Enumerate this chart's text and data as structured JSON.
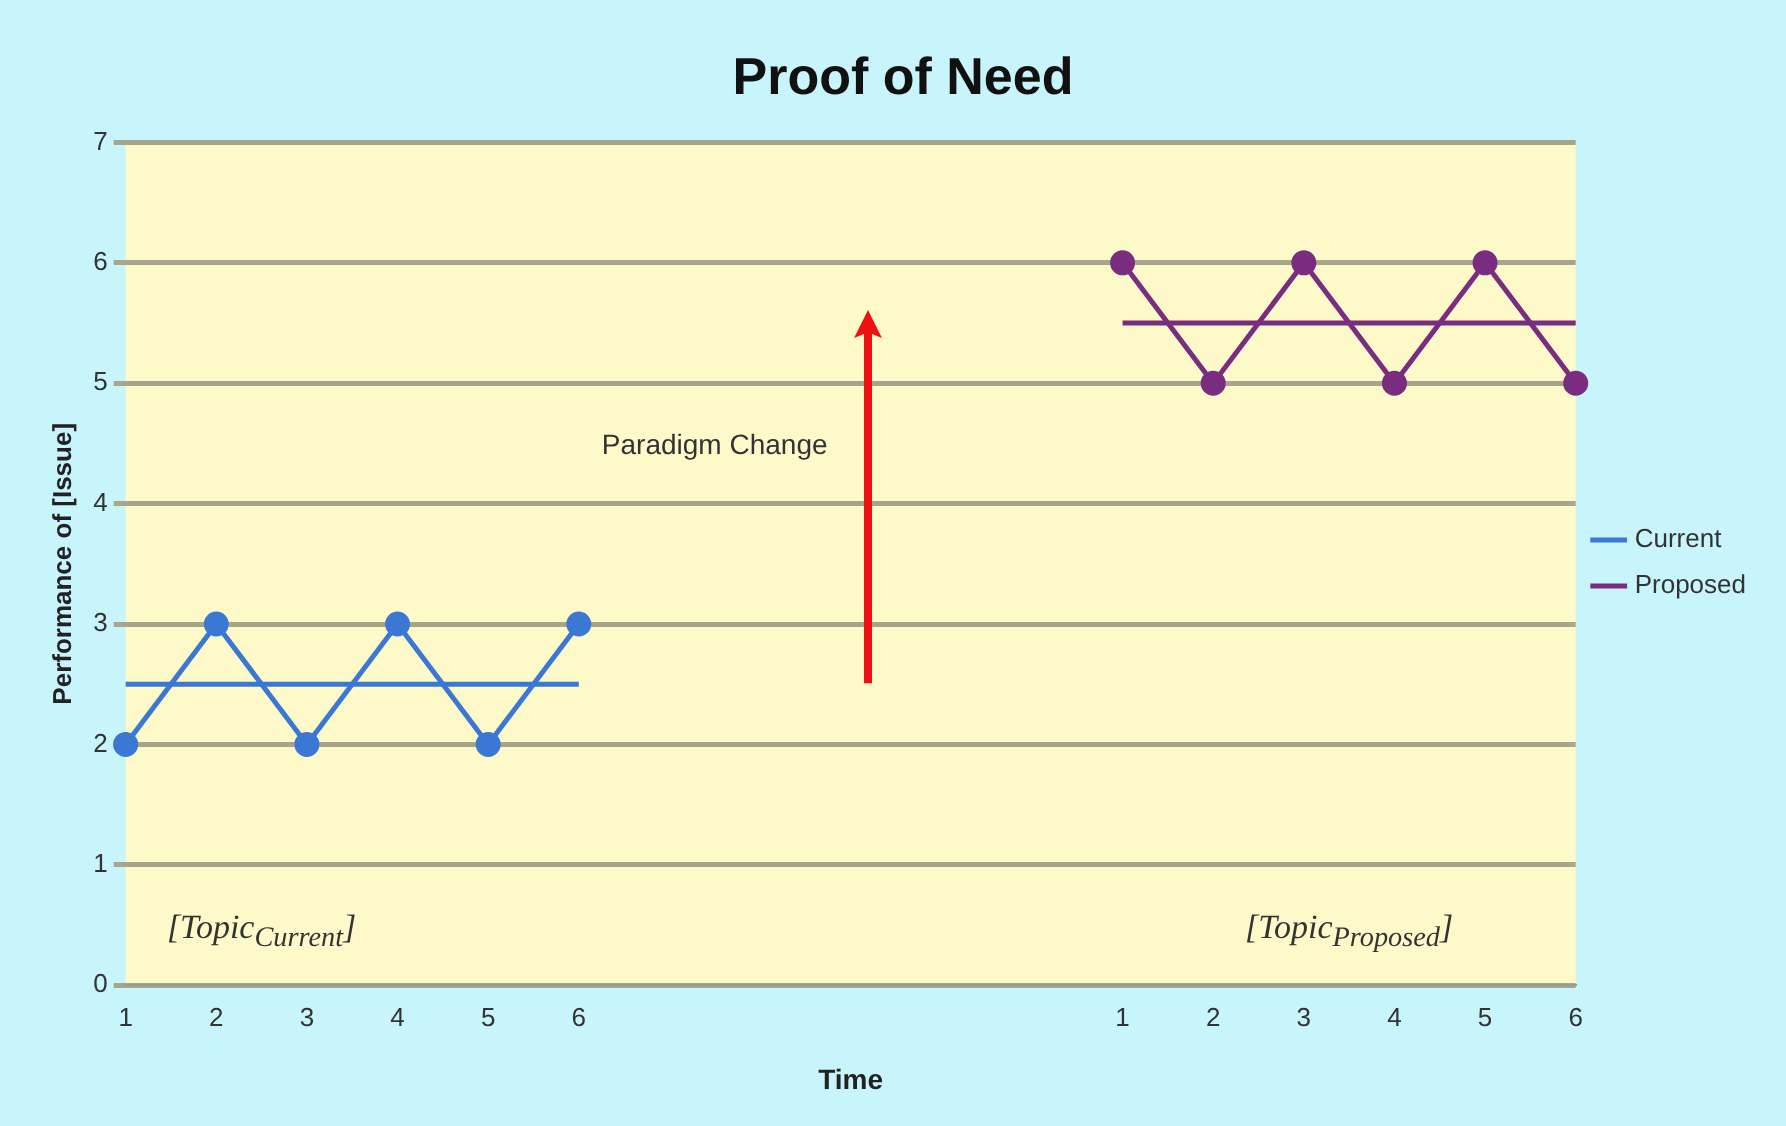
{
  "chart_data": {
    "type": "line",
    "title": "Proof of Need",
    "xlabel": "Time",
    "ylabel": "Performance of [Issue]",
    "categories": [
      "1",
      "2",
      "3",
      "4",
      "5",
      "6",
      null,
      null,
      null,
      null,
      null,
      "1",
      "2",
      "3",
      "4",
      "5",
      "6"
    ],
    "series": [
      {
        "name": "Current",
        "color": "#3a78d4",
        "marker": "circle",
        "values": [
          2,
          3,
          2,
          3,
          2,
          3,
          null,
          null,
          null,
          null,
          null,
          null,
          null,
          null,
          null,
          null,
          null
        ]
      },
      {
        "name": "Proposed",
        "color": "#7a2d80",
        "marker": "circle",
        "values": [
          null,
          null,
          null,
          null,
          null,
          null,
          null,
          null,
          null,
          null,
          null,
          6,
          5,
          6,
          5,
          6,
          5
        ]
      },
      {
        "color": "#3a78d4",
        "marker": "none",
        "values": [
          2.5,
          2.5,
          2.5,
          2.5,
          2.5,
          2.5,
          null,
          null,
          null,
          null,
          null,
          null,
          null,
          null,
          null,
          null,
          null
        ]
      },
      {
        "color": "#7a2d80",
        "marker": "none",
        "values": [
          null,
          null,
          null,
          null,
          null,
          null,
          null,
          null,
          null,
          null,
          null,
          5.5,
          5.5,
          5.5,
          5.5,
          5.5,
          5.5
        ]
      }
    ],
    "ylim": [
      0,
      7
    ],
    "yticks": [
      0,
      1,
      2,
      3,
      4,
      5,
      6,
      7
    ],
    "grid": "y",
    "legend": "right",
    "annotations": [
      "Paradigm Change",
      "[Topic$_{Current}$]",
      "[Topic$_{Proposed}$]"
    ]
  }
}
